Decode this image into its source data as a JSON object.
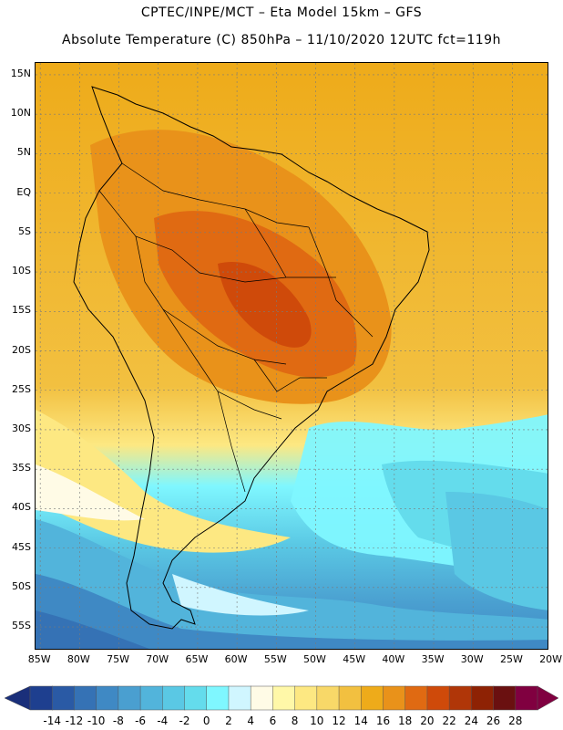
{
  "header": {
    "line1": "CPTEC/INPE/MCT –  Eta Model 15km – GFS",
    "line2": "Absolute Temperature (C) 850hPa – 11/10/2020 12UTC fct=119h"
  },
  "map": {
    "lat_labels": [
      "15N",
      "10N",
      "5N",
      "EQ",
      "5S",
      "10S",
      "15S",
      "20S",
      "25S",
      "30S",
      "35S",
      "40S",
      "45S",
      "50S",
      "55S"
    ],
    "lat_values": [
      15,
      10,
      5,
      0,
      -5,
      -10,
      -15,
      -20,
      -25,
      -30,
      -35,
      -40,
      -45,
      -50,
      -55
    ],
    "lon_labels": [
      "85W",
      "80W",
      "75W",
      "70W",
      "65W",
      "60W",
      "55W",
      "50W",
      "45W",
      "40W",
      "35W",
      "30W",
      "25W",
      "20W"
    ],
    "lon_values": [
      -85,
      -80,
      -75,
      -70,
      -65,
      -60,
      -55,
      -50,
      -45,
      -40,
      -35,
      -30,
      -25,
      -20
    ],
    "lat_range": [
      -58,
      16.5
    ],
    "lon_range": [
      -85.6,
      -20.3
    ]
  },
  "colorbar": {
    "labels": [
      "-14",
      "-12",
      "-10",
      "-8",
      "-6",
      "-4",
      "-2",
      "0",
      "2",
      "4",
      "6",
      "8",
      "10",
      "12",
      "14",
      "16",
      "18",
      "20",
      "22",
      "24",
      "26",
      "28"
    ],
    "colors": [
      "#1e3f8f",
      "#2a5aa5",
      "#3572b5",
      "#3f89c4",
      "#4a9fd0",
      "#52b4db",
      "#5ac8e4",
      "#64dcec",
      "#7ff7ff",
      "#d0f6ff",
      "#fffbe6",
      "#fff8a8",
      "#fde882",
      "#f8d868",
      "#f2c040",
      "#eeab1a",
      "#e9921a",
      "#e06a12",
      "#cf4a0a",
      "#b03608",
      "#8e2204",
      "#6a1010",
      "#800040"
    ],
    "left_arrow_color": "#1a2f7a",
    "right_arrow_color": "#800040"
  }
}
